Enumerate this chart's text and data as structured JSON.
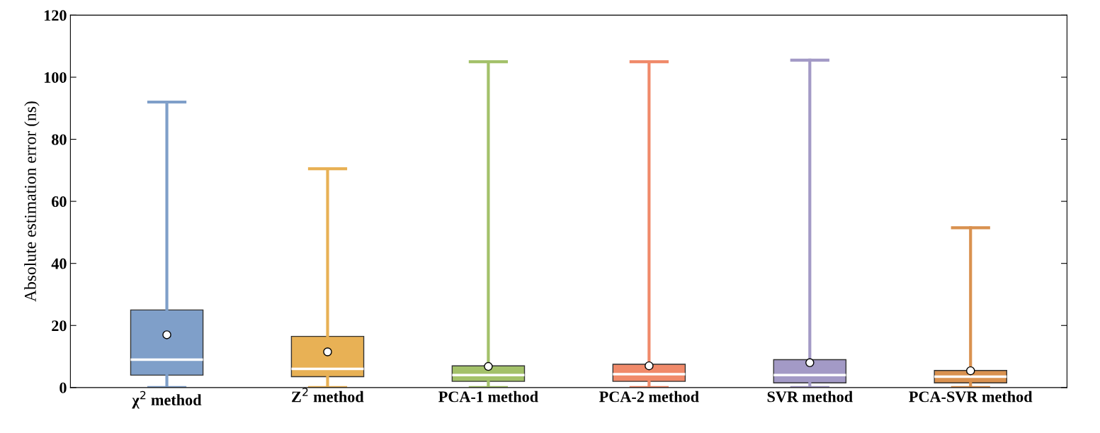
{
  "chart_data": {
    "type": "box",
    "ylabel": "Absolute estimation error (ns)",
    "categories": [
      "χ$^{2}$ method",
      "Z$^{2}$ method",
      "PCA-1 method",
      "PCA-2 method",
      "SVR method",
      "PCA-SVR method"
    ],
    "colors": [
      "#7f9fc9",
      "#e8b155",
      "#a3c16a",
      "#f08a6a",
      "#a39ac6",
      "#d9914f"
    ],
    "boxes": [
      {
        "low": 0,
        "q1": 4,
        "median": 9,
        "q3": 25,
        "high": 92,
        "mean": 17
      },
      {
        "low": 0,
        "q1": 3.5,
        "median": 6,
        "q3": 16.5,
        "high": 70.5,
        "mean": 11.5
      },
      {
        "low": 0,
        "q1": 2,
        "median": 4,
        "q3": 7,
        "high": 105,
        "mean": 6.8
      },
      {
        "low": 0,
        "q1": 2,
        "median": 4.3,
        "q3": 7.5,
        "high": 105,
        "mean": 7
      },
      {
        "low": 0,
        "q1": 1.5,
        "median": 4,
        "q3": 9,
        "high": 105.5,
        "mean": 8
      },
      {
        "low": 0,
        "q1": 1.5,
        "median": 3.5,
        "q3": 5.5,
        "high": 51.5,
        "mean": 5.4
      }
    ],
    "ylim": [
      0,
      120
    ],
    "yticks": [
      0,
      20,
      40,
      60,
      80,
      100,
      120
    ],
    "grid": false,
    "legend": false
  }
}
